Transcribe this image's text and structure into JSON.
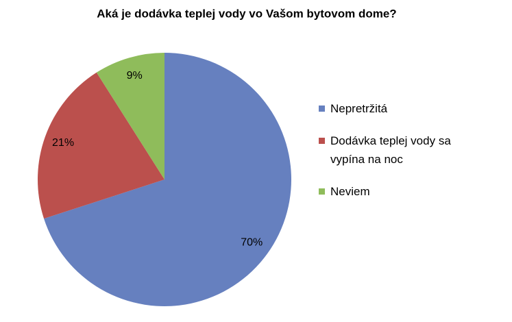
{
  "chart_data": {
    "type": "pie",
    "title": "Aká je dodávka teplej vody vo Vašom bytovom dome?",
    "categories": [
      "Nepretržitá",
      "Dodávka teplej vody sa vypína na noc",
      "Neviem"
    ],
    "values": [
      70,
      21,
      9
    ],
    "value_labels": [
      "70%",
      "21%",
      "9%"
    ],
    "colors": [
      "#6680bf",
      "#bb504d",
      "#8fbc5b"
    ],
    "legend": "right"
  }
}
